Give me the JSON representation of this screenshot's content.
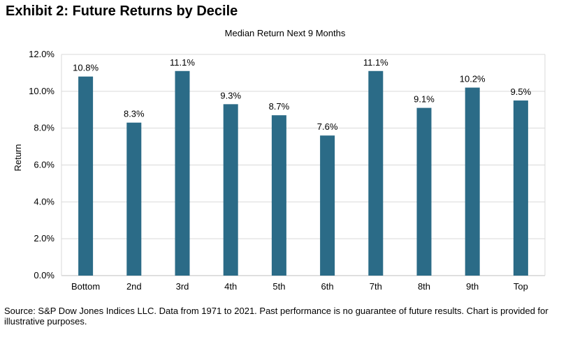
{
  "header": {
    "exhibit_title": "Exhibit 2: Future Returns by Decile"
  },
  "footer": {
    "source_note": "Source: S&P Dow Jones Indices LLC. Data from 1971 to 2021. Past performance is no guarantee of future results. Chart is provided for illustrative purposes."
  },
  "colors": {
    "bar": "#2b6b87",
    "grid": "#d9d9d9",
    "axis": "#bfbfbf"
  },
  "chart_data": {
    "type": "bar",
    "title": "Median Return Next 9 Months",
    "xlabel": "",
    "ylabel": "Return",
    "categories": [
      "Bottom",
      "2nd",
      "3rd",
      "4th",
      "5th",
      "6th",
      "7th",
      "8th",
      "9th",
      "Top"
    ],
    "values": [
      10.8,
      8.3,
      11.1,
      9.3,
      8.7,
      7.6,
      11.1,
      9.1,
      10.2,
      9.5
    ],
    "data_labels": [
      "10.8%",
      "8.3%",
      "11.1%",
      "9.3%",
      "8.7%",
      "7.6%",
      "11.1%",
      "9.1%",
      "10.2%",
      "9.5%"
    ],
    "ylim": [
      0,
      12
    ],
    "yticks": [
      0,
      2,
      4,
      6,
      8,
      10,
      12
    ],
    "ytick_labels": [
      "0.0%",
      "2.0%",
      "4.0%",
      "6.0%",
      "8.0%",
      "10.0%",
      "12.0%"
    ],
    "grid": true,
    "legend": "none"
  }
}
